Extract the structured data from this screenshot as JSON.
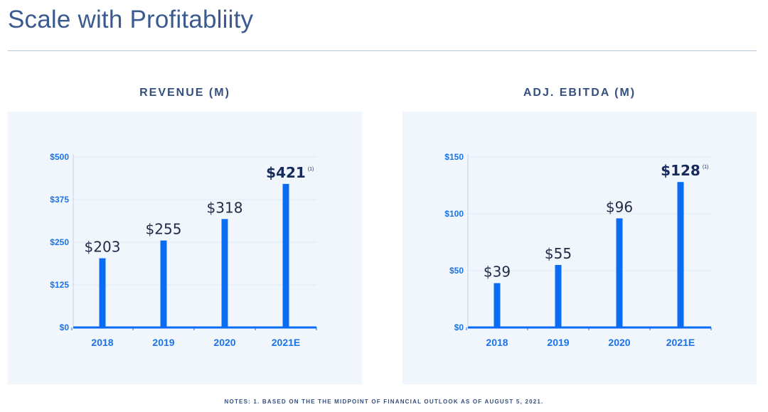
{
  "page": {
    "title": "Scale with Profitabliity",
    "notes": "NOTES: 1. BASED ON THE THE MIDPOINT OF FINANCIAL OUTLOOK AS OF AUGUST 5, 2021."
  },
  "colors": {
    "bar": "#0a6cf2",
    "axis_text": "#1a73e8",
    "value_text": "#1f2b45",
    "highlight_text": "#162a5c",
    "heading": "#34507e",
    "title": "#3a5a90"
  },
  "chart_data": [
    {
      "type": "bar",
      "title": "REVENUE (M)",
      "categories": [
        "2018",
        "2019",
        "2020",
        "2021E"
      ],
      "values": [
        203,
        255,
        318,
        421
      ],
      "value_labels": [
        "$203",
        "$255",
        "$318",
        "$421"
      ],
      "footnote_marks": [
        "",
        "",
        "",
        "(1)"
      ],
      "highlight": [
        false,
        false,
        false,
        true
      ],
      "ylim": [
        0,
        500
      ],
      "yticks": [
        0,
        125,
        250,
        375,
        500
      ],
      "ytick_labels": [
        "$0",
        "$125",
        "$250",
        "$375",
        "$500"
      ],
      "xlabel": "",
      "ylabel": ""
    },
    {
      "type": "bar",
      "title": "ADJ. EBITDA (M)",
      "categories": [
        "2018",
        "2019",
        "2020",
        "2021E"
      ],
      "values": [
        39,
        55,
        96,
        128
      ],
      "value_labels": [
        "$39",
        "$55",
        "$96",
        "$128"
      ],
      "footnote_marks": [
        "",
        "",
        "",
        "(1)"
      ],
      "highlight": [
        false,
        false,
        false,
        true
      ],
      "ylim": [
        0,
        150
      ],
      "yticks": [
        0,
        50,
        100,
        150
      ],
      "ytick_labels": [
        "$0",
        "$50",
        "$100",
        "$150"
      ],
      "xlabel": "",
      "ylabel": ""
    }
  ]
}
